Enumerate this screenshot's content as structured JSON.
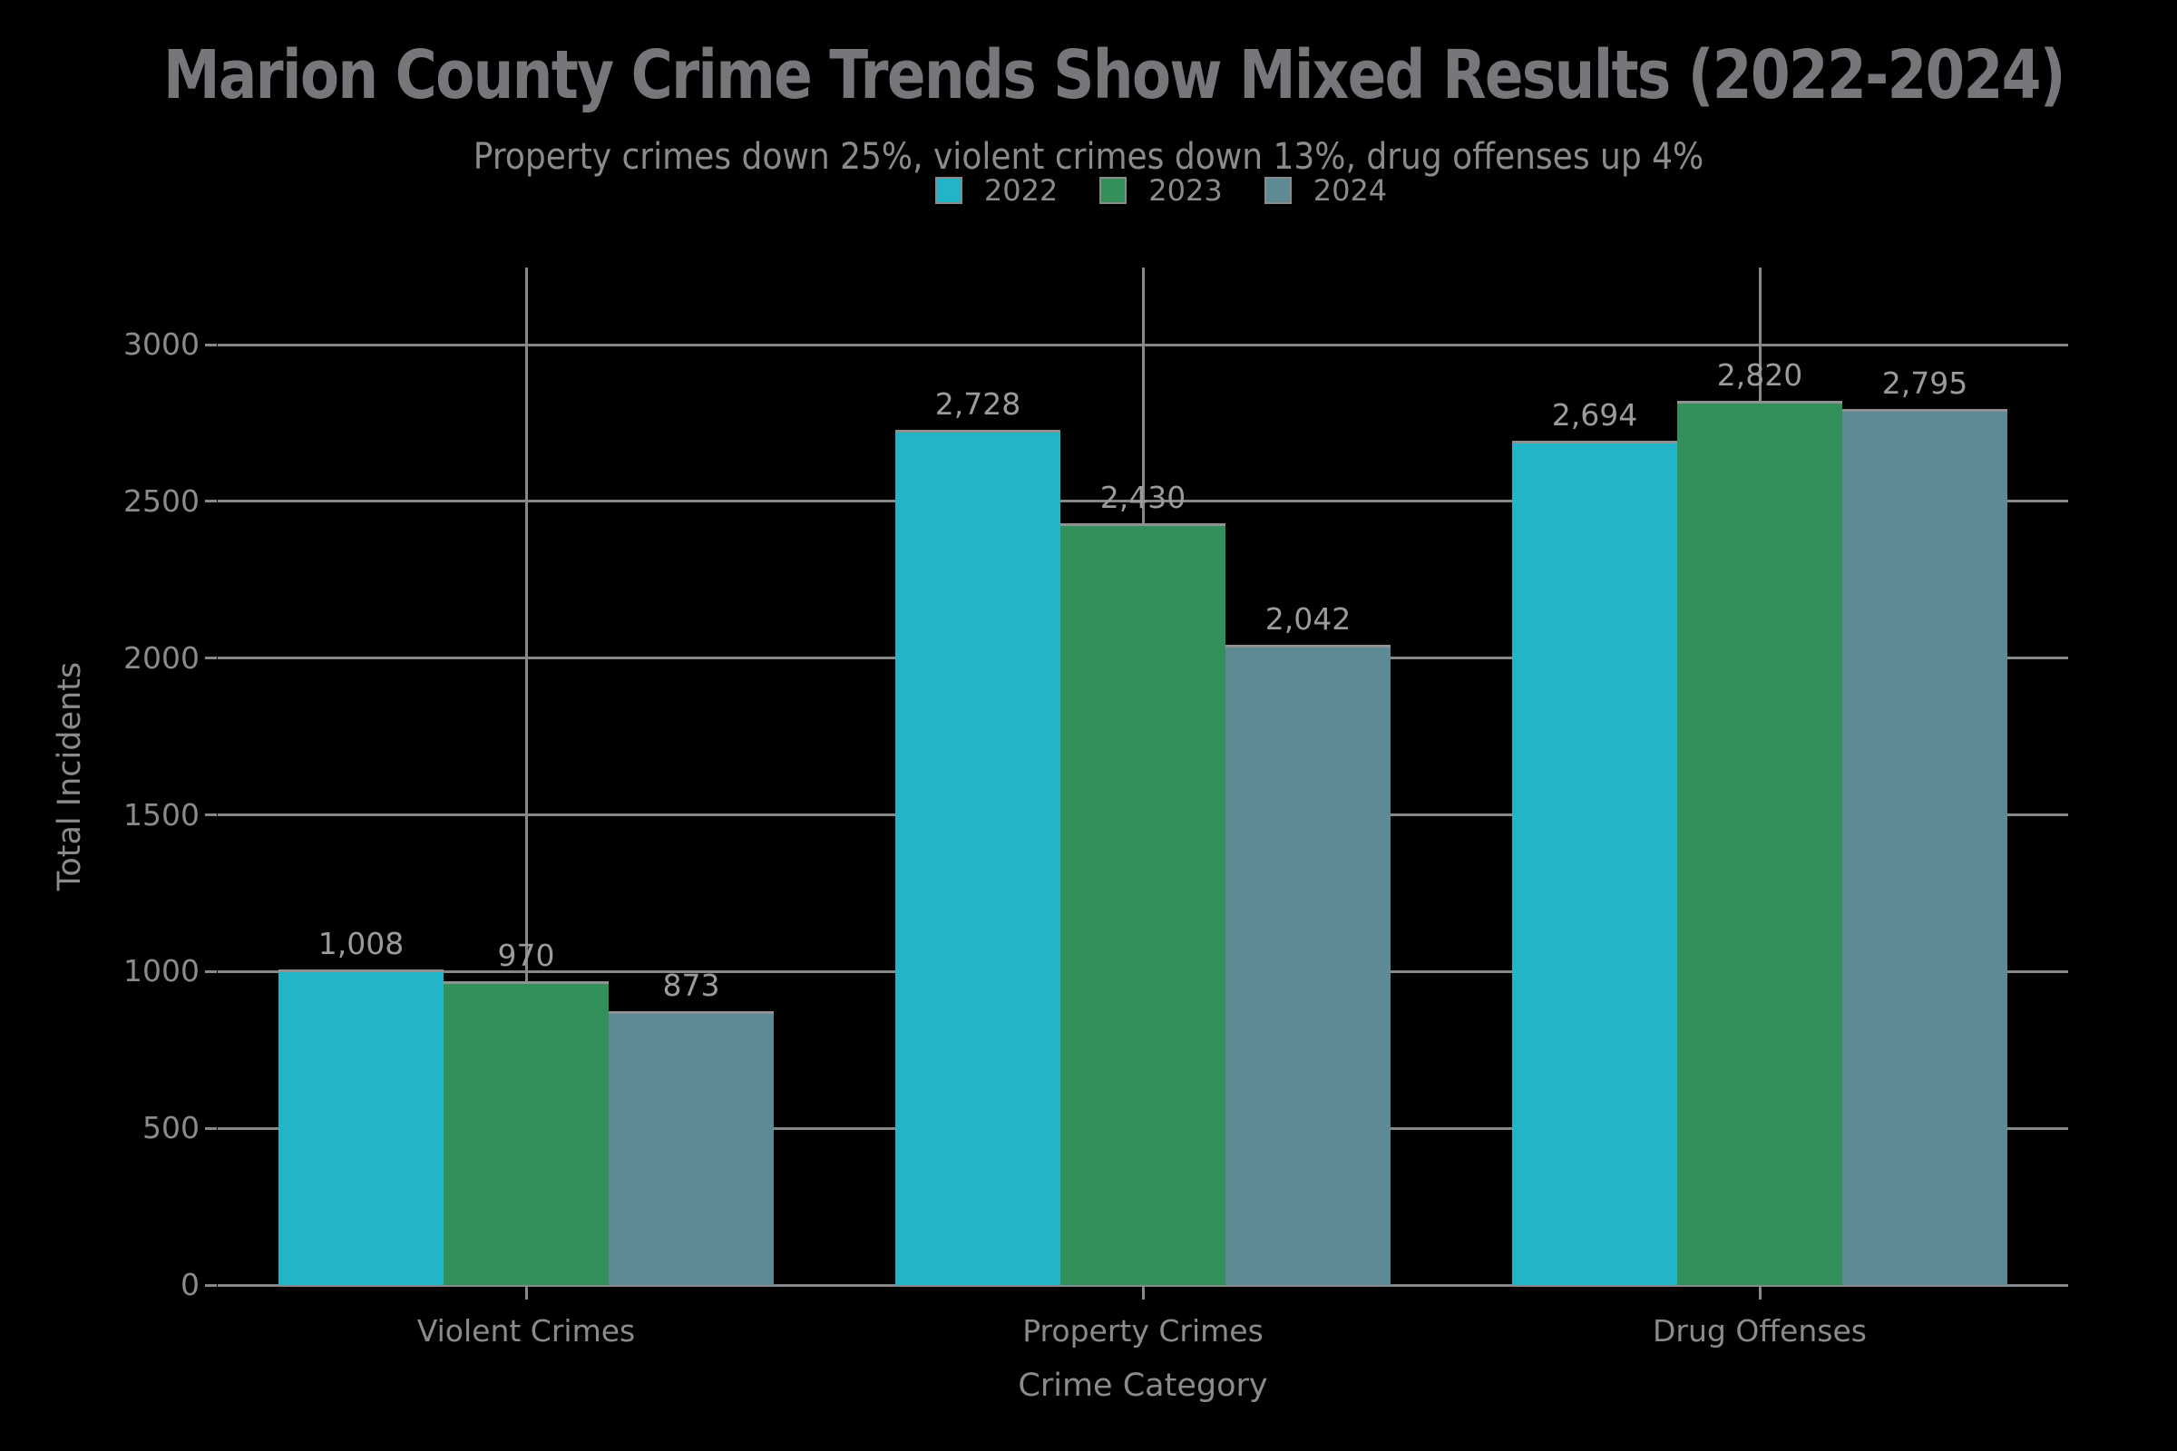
{
  "title": "Marion County Crime Trends Show Mixed Results (2022-2024)",
  "subtitle": "Property crimes down 25%, violent crimes down 13%, drug offenses up 4%",
  "colors": {
    "background": "#000000",
    "grid": "#85878a",
    "bar_edge": "#8f9193",
    "title_text": "#76777a",
    "text": "#8b8b8d",
    "value_label_text": "#9b9b9d",
    "series_2022": "#22b5c9",
    "series_2023": "#33905a",
    "series_2024": "#5e8a93"
  },
  "legend": [
    {
      "label": "2022",
      "color": "#22b5c9"
    },
    {
      "label": "2023",
      "color": "#33905a"
    },
    {
      "label": "2024",
      "color": "#5e8a93"
    }
  ],
  "chart_data": {
    "type": "bar",
    "title": "Marion County Crime Trends Show Mixed Results (2022-2024)",
    "subtitle": "Property crimes down 25%, violent crimes down 13%, drug offenses up 4%",
    "categories": [
      "Violent Crimes",
      "Property Crimes",
      "Drug Offenses"
    ],
    "series": [
      {
        "name": "2022",
        "color": "#22b5c9",
        "values": [
          1008,
          2728,
          2694
        ],
        "labels": [
          "1,008",
          "2,728",
          "2,694"
        ]
      },
      {
        "name": "2023",
        "color": "#33905a",
        "values": [
          970,
          2430,
          2820
        ],
        "labels": [
          "970",
          "2,430",
          "2,820"
        ]
      },
      {
        "name": "2024",
        "color": "#5e8a93",
        "values": [
          873,
          2042,
          2795
        ],
        "labels": [
          "873",
          "2,042",
          "2,795"
        ]
      }
    ],
    "xlabel": "Crime Category",
    "ylabel": "Total Incidents",
    "yticks": [
      0,
      500,
      1000,
      1500,
      2000,
      2500,
      3000
    ],
    "ytick_labels": [
      "0",
      "500",
      "1000",
      "1500",
      "2000",
      "2500",
      "3000"
    ],
    "ylim": [
      0,
      3250
    ],
    "grid": true,
    "legend_position": "top-center"
  }
}
